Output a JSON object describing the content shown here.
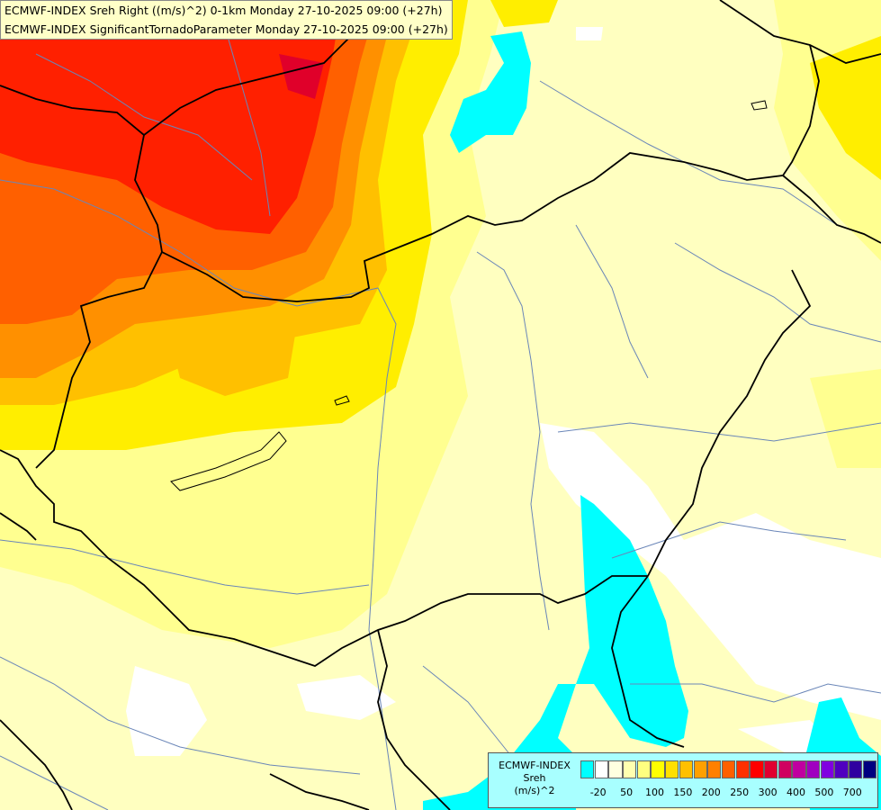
{
  "header": {
    "line1": "ECMWF-INDEX Sreh Right ((m/s)^2) 0-1km Monday 27-10-2025 09:00 (+27h)",
    "line2": "ECMWF-INDEX SignificantTornadoParameter Monday 27-10-2025 09:00 (+27h)"
  },
  "legend": {
    "source": "ECMWF-INDEX",
    "variable": "Sreh",
    "unit": "(m/s)^2",
    "colors": [
      "#00ffff",
      "#ffffff",
      "#ffffe0",
      "#ffffb0",
      "#ffff80",
      "#ffff00",
      "#ffe000",
      "#ffc000",
      "#ffa000",
      "#ff8000",
      "#ff6000",
      "#ff3000",
      "#ff0000",
      "#e00030",
      "#d00060",
      "#c000a0",
      "#a000c0",
      "#8000e0",
      "#5000c0",
      "#3000a0",
      "#000080"
    ],
    "ticks": [
      "-20",
      "50",
      "100",
      "150",
      "200",
      "250",
      "300",
      "400",
      "500",
      "700"
    ]
  },
  "colors": {
    "border": "#000000",
    "river": "#6a86b8",
    "red_core": "#ff2200",
    "orange": "#ff8a00",
    "yellow": "#ffe000",
    "pale_yellow": "#ffffc0",
    "cyan": "#00ffff"
  }
}
